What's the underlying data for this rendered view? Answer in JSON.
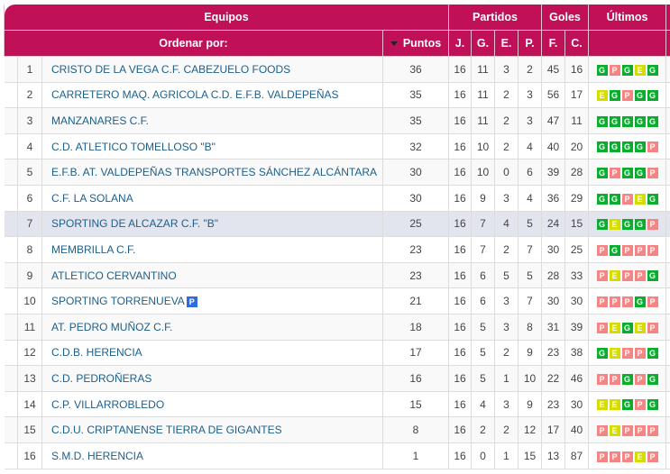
{
  "header": {
    "equipos": "Equipos",
    "partidos": "Partidos",
    "goles": "Goles",
    "ultimos": "Últimos",
    "ordenar": "Ordenar por:",
    "puntos": "Puntos",
    "j": "J.",
    "g": "G.",
    "e": "E.",
    "p": "P.",
    "f": "F.",
    "c": "C."
  },
  "colors": {
    "header_bg": "#c01057",
    "G": "#0aad2e",
    "E": "#d4dc00",
    "P": "#f58585",
    "highlight_row": "#e3e5ee",
    "badge": "#2f6be0"
  },
  "rows": [
    {
      "pos": "1",
      "team": "CRISTO DE LA VEGA C.F. CABEZUELO FOODS",
      "pts": "36",
      "j": "16",
      "g": "11",
      "e": "3",
      "p": "2",
      "f": "45",
      "c": "16",
      "last": [
        "G",
        "P",
        "G",
        "E",
        "G"
      ]
    },
    {
      "pos": "2",
      "team": "CARRETERO MAQ. AGRICOLA C.D. E.F.B. VALDEPEÑAS",
      "pts": "35",
      "j": "16",
      "g": "11",
      "e": "2",
      "p": "3",
      "f": "56",
      "c": "17",
      "last": [
        "E",
        "G",
        "P",
        "G",
        "G"
      ]
    },
    {
      "pos": "3",
      "team": "MANZANARES C.F.",
      "pts": "35",
      "j": "16",
      "g": "11",
      "e": "2",
      "p": "3",
      "f": "47",
      "c": "11",
      "last": [
        "G",
        "G",
        "G",
        "G",
        "G"
      ]
    },
    {
      "pos": "4",
      "team": "C.D. ATLETICO TOMELLOSO \"B\"",
      "pts": "32",
      "j": "16",
      "g": "10",
      "e": "2",
      "p": "4",
      "f": "40",
      "c": "20",
      "last": [
        "G",
        "G",
        "G",
        "G",
        "P"
      ]
    },
    {
      "pos": "5",
      "team": "E.F.B. AT. VALDEPEÑAS TRANSPORTES SÁNCHEZ ALCÁNTARA",
      "pts": "30",
      "j": "16",
      "g": "10",
      "e": "0",
      "p": "6",
      "f": "39",
      "c": "28",
      "last": [
        "G",
        "P",
        "G",
        "G",
        "P"
      ]
    },
    {
      "pos": "6",
      "team": "C.F. LA SOLANA",
      "pts": "30",
      "j": "16",
      "g": "9",
      "e": "3",
      "p": "4",
      "f": "36",
      "c": "29",
      "last": [
        "G",
        "G",
        "P",
        "E",
        "G"
      ]
    },
    {
      "pos": "7",
      "team": "SPORTING DE ALCAZAR C.F. \"B\"",
      "pts": "25",
      "j": "16",
      "g": "7",
      "e": "4",
      "p": "5",
      "f": "24",
      "c": "15",
      "last": [
        "G",
        "E",
        "G",
        "G",
        "P"
      ],
      "highlight": true
    },
    {
      "pos": "8",
      "team": "MEMBRILLA C.F.",
      "pts": "23",
      "j": "16",
      "g": "7",
      "e": "2",
      "p": "7",
      "f": "30",
      "c": "25",
      "last": [
        "P",
        "G",
        "P",
        "P",
        "P"
      ]
    },
    {
      "pos": "9",
      "team": "ATLETICO CERVANTINO",
      "pts": "23",
      "j": "16",
      "g": "6",
      "e": "5",
      "p": "5",
      "f": "28",
      "c": "33",
      "last": [
        "P",
        "E",
        "P",
        "P",
        "G"
      ]
    },
    {
      "pos": "10",
      "team": "SPORTING TORRENUEVA",
      "badge": "P",
      "pts": "21",
      "j": "16",
      "g": "6",
      "e": "3",
      "p": "7",
      "f": "30",
      "c": "30",
      "last": [
        "P",
        "P",
        "P",
        "G",
        "P"
      ]
    },
    {
      "pos": "11",
      "team": "AT. PEDRO MUÑOZ C.F.",
      "pts": "18",
      "j": "16",
      "g": "5",
      "e": "3",
      "p": "8",
      "f": "31",
      "c": "39",
      "last": [
        "P",
        "E",
        "G",
        "E",
        "P"
      ]
    },
    {
      "pos": "12",
      "team": "C.D.B. HERENCIA",
      "pts": "17",
      "j": "16",
      "g": "5",
      "e": "2",
      "p": "9",
      "f": "23",
      "c": "38",
      "last": [
        "G",
        "E",
        "P",
        "P",
        "G"
      ]
    },
    {
      "pos": "13",
      "team": "C.D. PEDROÑERAS",
      "pts": "16",
      "j": "16",
      "g": "5",
      "e": "1",
      "p": "10",
      "f": "22",
      "c": "46",
      "last": [
        "P",
        "P",
        "G",
        "P",
        "G"
      ]
    },
    {
      "pos": "14",
      "team": "C.P. VILLARROBLEDO",
      "pts": "15",
      "j": "16",
      "g": "4",
      "e": "3",
      "p": "9",
      "f": "23",
      "c": "30",
      "last": [
        "E",
        "E",
        "G",
        "P",
        "G"
      ]
    },
    {
      "pos": "15",
      "team": "C.D.U. CRIPTANENSE TIERRA DE GIGANTES",
      "pts": "8",
      "j": "16",
      "g": "2",
      "e": "2",
      "p": "12",
      "f": "17",
      "c": "40",
      "last": [
        "P",
        "E",
        "P",
        "P",
        "P"
      ]
    },
    {
      "pos": "16",
      "team": "S.M.D. HERENCIA",
      "pts": "1",
      "j": "16",
      "g": "0",
      "e": "1",
      "p": "15",
      "f": "13",
      "c": "87",
      "last": [
        "P",
        "P",
        "P",
        "E",
        "P"
      ]
    }
  ]
}
